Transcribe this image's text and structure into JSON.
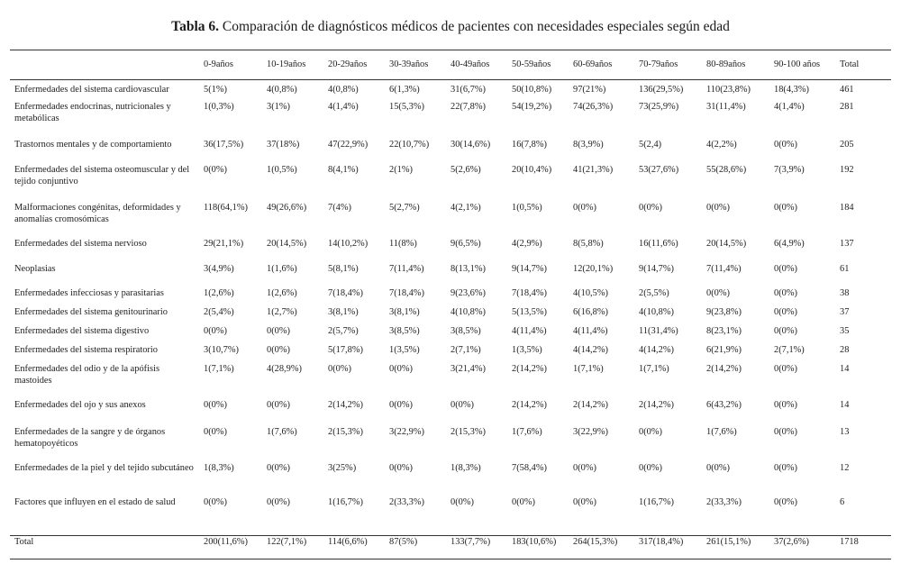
{
  "title": {
    "label": "Tabla 6.",
    "text": "Comparación de diagnósticos médicos de pacientes con necesidades especiales según edad"
  },
  "columns": [
    "0-9años",
    "10-19años",
    "20-29años",
    "30-39años",
    "40-49años",
    "50-59años",
    "60-69años",
    "70-79años",
    "80-89años",
    "90-100 años",
    "Total"
  ],
  "rows": [
    {
      "category": "Enfermedades del sistema cardiovascular",
      "values": [
        "5(1%)",
        "4(0,8%)",
        "4(0,8%)",
        "6(1,3%)",
        "31(6,7%)",
        "50(10,8%)",
        "97(21%)",
        "136(29,5%)",
        "110(23,8%)",
        "18(4,3%)",
        "461"
      ]
    },
    {
      "category": "Enfermedades endocrinas, nutricionales y metabólicas",
      "values": [
        "1(0,3%)",
        "3(1%)",
        "4(1,4%)",
        "15(5,3%)",
        "22(7,8%)",
        "54(19,2%)",
        "74(26,3%)",
        "73(25,9%)",
        "31(11,4%)",
        "4(1,4%)",
        "281"
      ]
    },
    {
      "category": "Trastornos mentales y de comportamiento",
      "values": [
        "36(17,5%)",
        "37(18%)",
        "47(22,9%)",
        "22(10,7%)",
        "30(14,6%)",
        "16(7,8%)",
        "8(3,9%)",
        "5(2,4)",
        "4(2,2%)",
        "0(0%)",
        "205"
      ]
    },
    {
      "category": "Enfermedades del sistema osteomuscular y del tejido conjuntivo",
      "values": [
        "0(0%)",
        "1(0,5%)",
        "8(4,1%)",
        "2(1%)",
        "5(2,6%)",
        "20(10,4%)",
        "41(21,3%)",
        "53(27,6%)",
        "55(28,6%)",
        "7(3,9%)",
        "192"
      ]
    },
    {
      "category": "Malformaciones congénitas, deformidades y anomalías cromosómicas",
      "values": [
        "118(64,1%)",
        "49(26,6%)",
        "7(4%)",
        "5(2,7%)",
        "4(2,1%)",
        "1(0,5%)",
        "0(0%)",
        "0(0%)",
        "0(0%)",
        "0(0%)",
        "184"
      ]
    },
    {
      "category": "Enfermedades del sistema nervioso",
      "values": [
        "29(21,1%)",
        "20(14,5%)",
        "14(10,2%)",
        "11(8%)",
        "9(6,5%)",
        "4(2,9%)",
        "8(5,8%)",
        "16(11,6%)",
        "20(14,5%)",
        "6(4,9%)",
        "137"
      ]
    },
    {
      "category": "Neoplasias",
      "values": [
        "3(4,9%)",
        "1(1,6%)",
        "5(8,1%)",
        "7(11,4%)",
        "8(13,1%)",
        "9(14,7%)",
        "12(20,1%)",
        "9(14,7%)",
        "7(11,4%)",
        "0(0%)",
        "61"
      ]
    },
    {
      "category": "Enfermedades infecciosas y parasitarias",
      "values": [
        "1(2,6%)",
        "1(2,6%)",
        "7(18,4%)",
        "7(18,4%)",
        "9(23,6%)",
        "7(18,4%)",
        "4(10,5%)",
        "2(5,5%)",
        "0(0%)",
        "0(0%)",
        "38"
      ]
    },
    {
      "category": "Enfermedades del sistema genitourinario",
      "values": [
        "2(5,4%)",
        "1(2,7%)",
        "3(8,1%)",
        "3(8,1%)",
        "4(10,8%)",
        "5(13,5%)",
        "6(16,8%)",
        "4(10,8%)",
        "9(23,8%)",
        "0(0%)",
        "37"
      ]
    },
    {
      "category": "Enfermedades del sistema digestivo",
      "values": [
        "0(0%)",
        "0(0%)",
        "2(5,7%)",
        "3(8,5%)",
        "3(8,5%)",
        "4(11,4%)",
        "4(11,4%)",
        "11(31,4%)",
        "8(23,1%)",
        "0(0%)",
        "35"
      ]
    },
    {
      "category": "Enfermedades del sistema respiratorio",
      "values": [
        "3(10,7%)",
        "0(0%)",
        "5(17,8%)",
        "1(3,5%)",
        "2(7,1%)",
        "1(3,5%)",
        "4(14,2%)",
        "4(14,2%)",
        "6(21,9%)",
        "2(7,1%)",
        "28"
      ]
    },
    {
      "category": "Enfermedades del odio y de la apófisis mastoides",
      "values": [
        "1(7,1%)",
        "4(28,9%)",
        "0(0%)",
        "0(0%)",
        "3(21,4%)",
        "2(14,2%)",
        "1(7,1%)",
        "1(7,1%)",
        "2(14,2%)",
        "0(0%)",
        "14"
      ]
    },
    {
      "category": "Enfermedades del ojo y sus anexos",
      "values": [
        "0(0%)",
        "0(0%)",
        "2(14,2%)",
        "0(0%)",
        "0(0%)",
        "2(14,2%)",
        "2(14,2%)",
        "2(14,2%)",
        "6(43,2%)",
        "0(0%)",
        "14"
      ]
    },
    {
      "category": "Enfermedades de la sangre y de órganos hematopoyéticos",
      "values": [
        "0(0%)",
        "1(7,6%)",
        "2(15,3%)",
        "3(22,9%)",
        "2(15,3%)",
        "1(7,6%)",
        "3(22,9%)",
        "0(0%)",
        "1(7,6%)",
        "0(0%)",
        "13"
      ]
    },
    {
      "category": "Enfermedades de la piel y del tejido subcutáneo",
      "values": [
        "1(8,3%)",
        "0(0%)",
        "3(25%)",
        "0(0%)",
        "1(8,3%)",
        "7(58,4%)",
        "0(0%)",
        "0(0%)",
        "0(0%)",
        "0(0%)",
        "12"
      ]
    },
    {
      "category": "Factores que influyen en el estado de salud",
      "values": [
        "0(0%)",
        "0(0%)",
        "1(16,7%)",
        "2(33,3%)",
        "0(0%)",
        "0(0%)",
        "0(0%)",
        "1(16,7%)",
        "2(33,3%)",
        "0(0%)",
        "6"
      ]
    }
  ],
  "total": {
    "label": "Total",
    "values": [
      "200(11,6%)",
      "122(7,1%)",
      "114(6,6%)",
      "87(5%)",
      "133(7,7%)",
      "183(10,6%)",
      "264(15,3%)",
      "317(18,4%)",
      "261(15,1%)",
      "37(2,6%)",
      "1718"
    ]
  }
}
